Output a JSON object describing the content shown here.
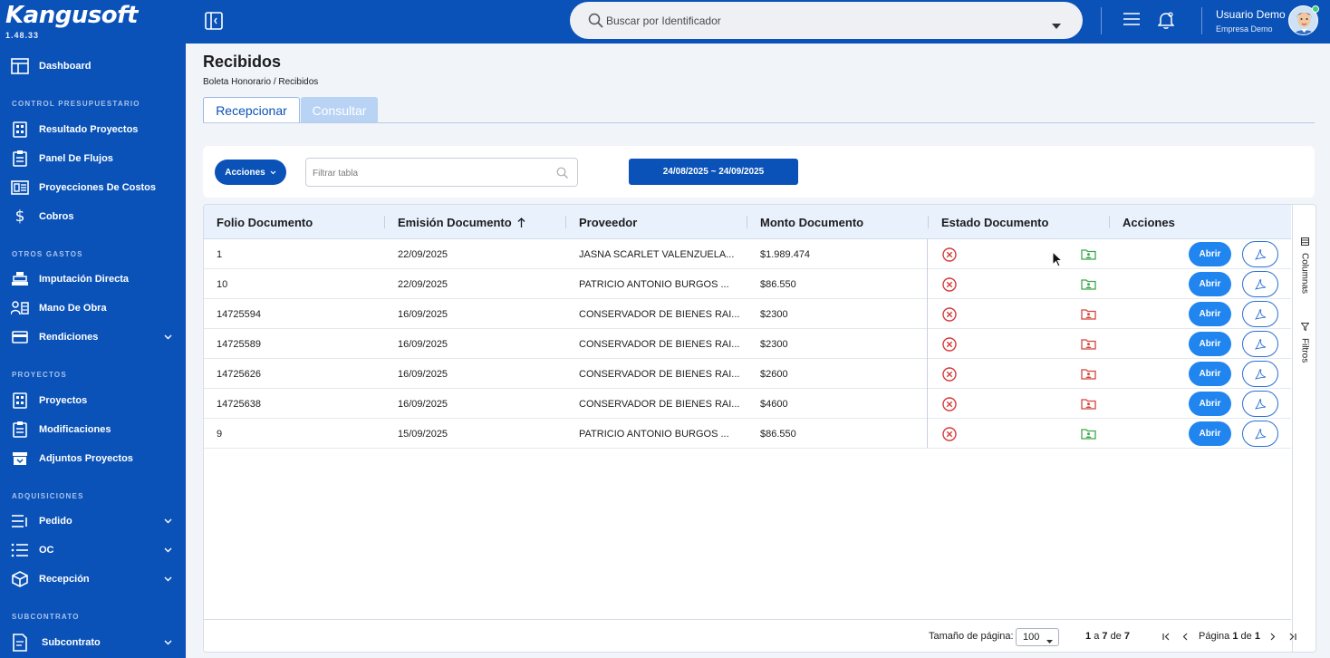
{
  "app": {
    "logo": "Kangusoft",
    "version": "1.48.33"
  },
  "sidebar": {
    "dashboard": "Dashboard",
    "sections": {
      "control": "CONTROL PRESUPUESTARIO",
      "otros": "OTROS GASTOS",
      "proyectos": "PROYECTOS",
      "adquisiciones": "ADQUISICIONES",
      "subcontrato": "SUBCONTRATO"
    },
    "items": {
      "resultado_proyectos": "Resultado Proyectos",
      "panel_flujos": "Panel De Flujos",
      "proyecciones_costos": "Proyecciones De Costos",
      "cobros": "Cobros",
      "imputacion_directa": "Imputación Directa",
      "mano_obra": "Mano De Obra",
      "rendiciones": "Rendiciones",
      "proyectos": "Proyectos",
      "modificaciones": "Modificaciones",
      "adjuntos_proyectos": "Adjuntos Proyectos",
      "pedido": "Pedido",
      "oc": "OC",
      "recepcion": "Recepción",
      "subcontrato": "Subcontrato"
    }
  },
  "header": {
    "search_placeholder": "Buscar por Identificador",
    "user_name": "Usuario Demo",
    "user_company": "Empresa Demo"
  },
  "page": {
    "title": "Recibidos",
    "breadcrumb": "Boleta Honorario / Recibidos",
    "tabs": [
      "Recepcionar",
      "Consultar"
    ]
  },
  "toolbar": {
    "acciones_label": "Acciones",
    "filter_placeholder": "Filtrar tabla",
    "date_range": "24/08/2025 ~ 24/09/2025"
  },
  "grid": {
    "columns": [
      "Folio Documento",
      "Emisión Documento",
      "Proveedor",
      "Monto Documento",
      "Estado Documento",
      "Acciones"
    ],
    "abrir_label": "Abrir",
    "rows": [
      {
        "folio": "1",
        "emision": "22/09/2025",
        "proveedor": "JASNA SCARLET VALENZUELA...",
        "monto": "$1.989.474",
        "folder": "green"
      },
      {
        "folio": "10",
        "emision": "22/09/2025",
        "proveedor": "PATRICIO ANTONIO BURGOS ...",
        "monto": "$86.550",
        "folder": "green"
      },
      {
        "folio": "14725594",
        "emision": "16/09/2025",
        "proveedor": "CONSERVADOR DE BIENES RAI...",
        "monto": "$2300",
        "folder": "red"
      },
      {
        "folio": "14725589",
        "emision": "16/09/2025",
        "proveedor": "CONSERVADOR DE BIENES RAI...",
        "monto": "$2300",
        "folder": "red"
      },
      {
        "folio": "14725626",
        "emision": "16/09/2025",
        "proveedor": "CONSERVADOR DE BIENES RAI...",
        "monto": "$2600",
        "folder": "red"
      },
      {
        "folio": "14725638",
        "emision": "16/09/2025",
        "proveedor": "CONSERVADOR DE BIENES RAI...",
        "monto": "$4600",
        "folder": "red"
      },
      {
        "folio": "9",
        "emision": "15/09/2025",
        "proveedor": "PATRICIO ANTONIO BURGOS ...",
        "monto": "$86.550",
        "folder": "green"
      }
    ],
    "side_tabs": [
      "Columnas",
      "Filtros"
    ]
  },
  "pager": {
    "page_size_label": "Tamaño de página:",
    "page_size": "100",
    "range_start": "1",
    "range_a": "a",
    "range_end": "7",
    "range_de": "de",
    "range_total": "7",
    "pagina_label": "Página",
    "page_current": "1",
    "page_de": "de",
    "page_total": "1"
  },
  "colors": {
    "brand": "#0a52b8",
    "accent": "#2185ef",
    "status_red": "#d63a3a",
    "folder_green": "#3aa948",
    "folder_red": "#d4453a"
  }
}
